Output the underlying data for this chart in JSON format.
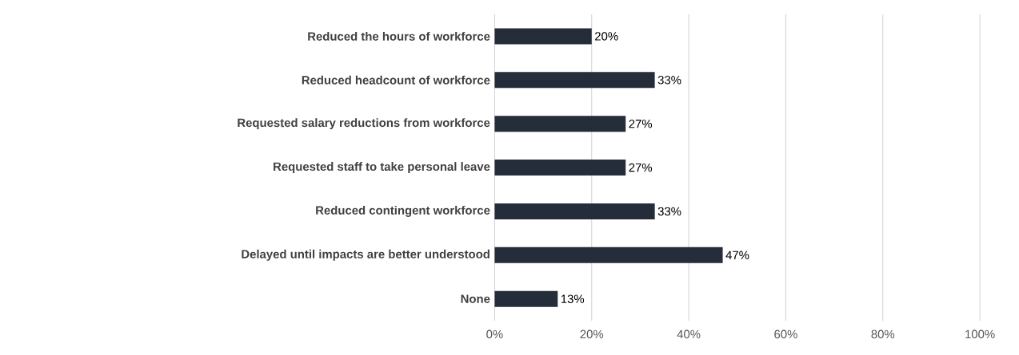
{
  "chart_data": {
    "type": "bar",
    "orientation": "horizontal",
    "categories": [
      "Reduced the hours of workforce",
      "Reduced headcount of workforce",
      "Requested salary reductions from workforce",
      "Requested staff to take personal leave",
      "Reduced contingent workforce",
      "Delayed until impacts are better understood",
      "None"
    ],
    "values": [
      20,
      33,
      27,
      27,
      33,
      47,
      13
    ],
    "value_labels": [
      "20%",
      "33%",
      "27%",
      "27%",
      "33%",
      "47%",
      "13%"
    ],
    "color": "#252d3a",
    "xlim": [
      0,
      100
    ],
    "xticks": [
      {
        "value": 0,
        "label": "0%"
      },
      {
        "value": 20,
        "label": "20%"
      },
      {
        "value": 40,
        "label": "40%"
      },
      {
        "value": 60,
        "label": "60%"
      },
      {
        "value": 80,
        "label": "80%"
      },
      {
        "value": 100,
        "label": "100%"
      }
    ],
    "grid": "x"
  }
}
